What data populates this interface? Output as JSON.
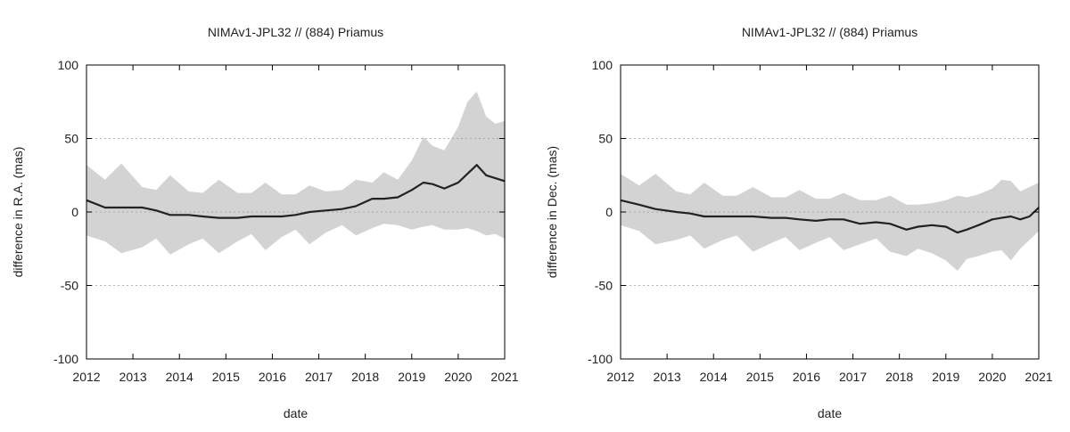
{
  "chart_data": [
    {
      "type": "area",
      "title": "NIMAv1-JPL32 // (884) Priamus",
      "xlabel": "date",
      "ylabel": "difference in R.A. (mas)",
      "xlim": [
        2012,
        2021
      ],
      "ylim": [
        -100,
        100
      ],
      "xticks": [
        "2012",
        "2013",
        "2014",
        "2015",
        "2016",
        "2017",
        "2018",
        "2019",
        "2020",
        "2021"
      ],
      "yticks": [
        "-100",
        "-50",
        "0",
        "50",
        "100"
      ],
      "grid": "horizontal dotted",
      "colors": {
        "band": "#d3d3d3",
        "line": "#222222"
      },
      "x": [
        2012.0,
        2012.4,
        2012.75,
        2013.2,
        2013.5,
        2013.8,
        2014.2,
        2014.5,
        2014.85,
        2015.25,
        2015.55,
        2015.85,
        2016.2,
        2016.5,
        2016.8,
        2017.15,
        2017.5,
        2017.8,
        2018.15,
        2018.4,
        2018.7,
        2019.0,
        2019.25,
        2019.45,
        2019.7,
        2020.0,
        2020.2,
        2020.4,
        2020.6,
        2020.8,
        2021.0
      ],
      "series": [
        {
          "values": [
            32,
            22,
            33,
            17,
            15,
            25,
            14,
            13,
            22,
            13,
            13,
            20,
            12,
            12,
            18,
            14,
            15,
            22,
            20,
            27,
            22,
            35,
            51,
            45,
            42,
            58,
            75,
            82,
            65,
            60,
            62
          ]
        },
        {
          "values": [
            8,
            3,
            3,
            3,
            1,
            -2,
            -2,
            -3,
            -4,
            -4,
            -3,
            -3,
            -3,
            -2,
            0,
            1,
            2,
            4,
            9,
            9,
            10,
            15,
            20,
            19,
            16,
            20,
            26,
            32,
            25,
            23,
            21
          ]
        },
        {
          "values": [
            -16,
            -20,
            -28,
            -24,
            -18,
            -29,
            -22,
            -18,
            -28,
            -20,
            -15,
            -26,
            -17,
            -12,
            -22,
            -14,
            -9,
            -16,
            -11,
            -8,
            -9,
            -12,
            -10,
            -9,
            -12,
            -12,
            -11,
            -13,
            -16,
            -15,
            -18
          ]
        }
      ]
    },
    {
      "type": "area",
      "title": "NIMAv1-JPL32 // (884) Priamus",
      "xlabel": "date",
      "ylabel": "difference in Dec. (mas)",
      "xlim": [
        2012,
        2021
      ],
      "ylim": [
        -100,
        100
      ],
      "xticks": [
        "2012",
        "2013",
        "2014",
        "2015",
        "2016",
        "2017",
        "2018",
        "2019",
        "2020",
        "2021"
      ],
      "yticks": [
        "-100",
        "-50",
        "0",
        "50",
        "100"
      ],
      "grid": "horizontal dotted",
      "colors": {
        "band": "#d3d3d3",
        "line": "#222222"
      },
      "x": [
        2012.0,
        2012.4,
        2012.75,
        2013.2,
        2013.5,
        2013.8,
        2014.2,
        2014.5,
        2014.85,
        2015.25,
        2015.55,
        2015.85,
        2016.2,
        2016.5,
        2016.8,
        2017.15,
        2017.5,
        2017.8,
        2018.15,
        2018.4,
        2018.7,
        2019.0,
        2019.25,
        2019.45,
        2019.7,
        2020.0,
        2020.2,
        2020.4,
        2020.6,
        2020.8,
        2021.0
      ],
      "series": [
        {
          "values": [
            26,
            18,
            26,
            14,
            12,
            20,
            11,
            11,
            17,
            10,
            10,
            15,
            9,
            9,
            13,
            8,
            8,
            11,
            5,
            5,
            6,
            8,
            11,
            10,
            12,
            16,
            22,
            21,
            14,
            17,
            20
          ]
        },
        {
          "values": [
            8,
            5,
            2,
            0,
            -1,
            -3,
            -3,
            -3,
            -3,
            -4,
            -4,
            -5,
            -6,
            -5,
            -5,
            -8,
            -7,
            -8,
            -12,
            -10,
            -9,
            -10,
            -14,
            -12,
            -9,
            -5,
            -4,
            -3,
            -5,
            -3,
            3
          ]
        },
        {
          "values": [
            -9,
            -13,
            -22,
            -19,
            -16,
            -25,
            -19,
            -16,
            -27,
            -21,
            -17,
            -26,
            -21,
            -17,
            -26,
            -22,
            -18,
            -27,
            -30,
            -25,
            -28,
            -33,
            -40,
            -32,
            -30,
            -27,
            -26,
            -33,
            -25,
            -19,
            -13
          ]
        }
      ]
    }
  ]
}
